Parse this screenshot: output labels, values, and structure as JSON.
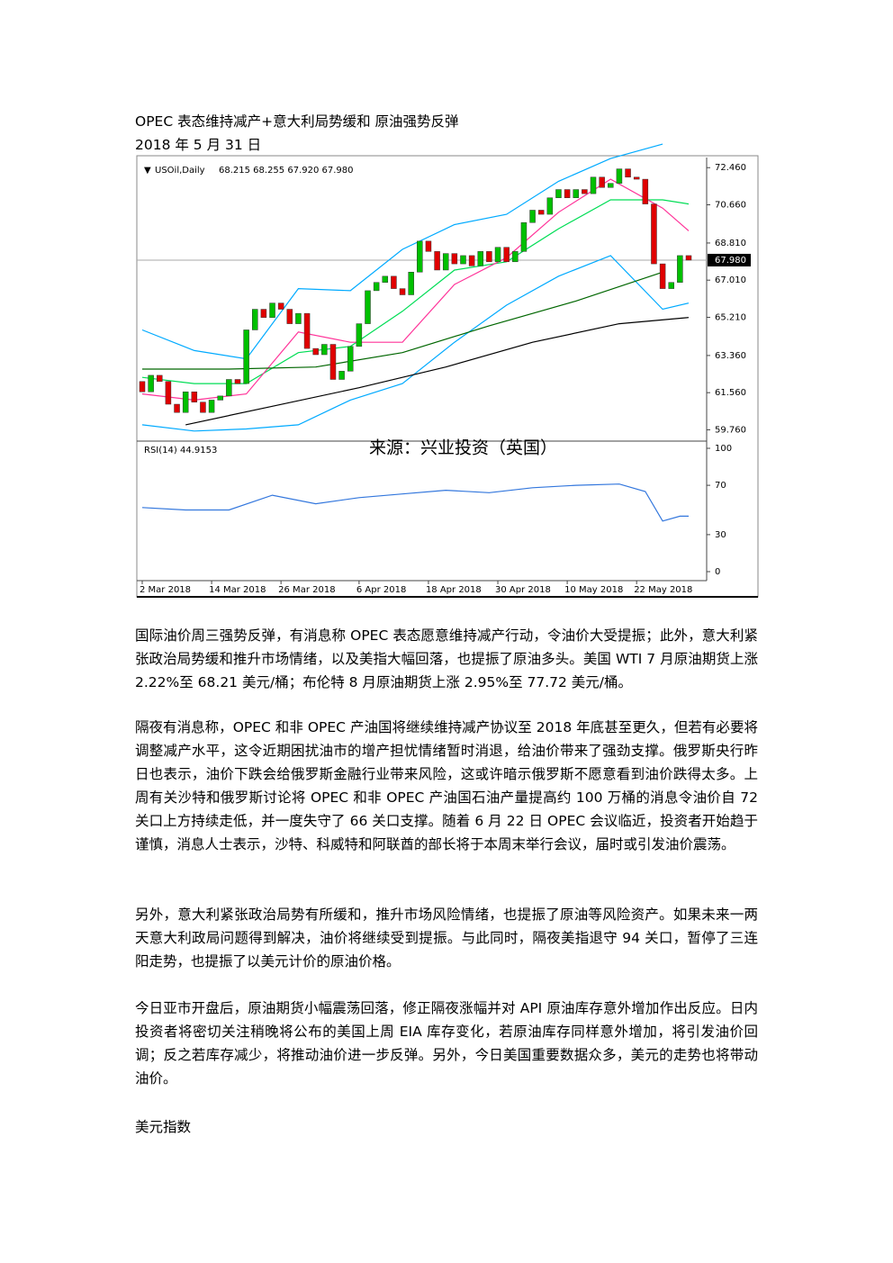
{
  "header": {
    "title": "OPEC 表态维持减产+意大利局势缓和  原油强势反弹",
    "date": "2018 年 5 月 31 日"
  },
  "chart": {
    "type": "candlestick",
    "symbol": "USOil,Daily",
    "quote": "68.215 68.255 67.920 67.980",
    "indicator_label": "RSI(14) 44.9153",
    "source": "来源：兴业投资（英国）",
    "categories": [
      "2 Mar 2018",
      null,
      null,
      null,
      null,
      null,
      null,
      null,
      "14 Mar 2018",
      null,
      null,
      null,
      null,
      null,
      null,
      null,
      "26 Mar 2018",
      null,
      null,
      null,
      null,
      null,
      null,
      null,
      null,
      "6 Apr 2018",
      null,
      null,
      null,
      null,
      null,
      null,
      null,
      "18 Apr 2018",
      null,
      null,
      null,
      null,
      null,
      null,
      null,
      "30 Apr 2018",
      null,
      null,
      null,
      null,
      null,
      null,
      null,
      "10 May 2018",
      null,
      null,
      null,
      null,
      null,
      null,
      null,
      "22 May 2018",
      null,
      null,
      null,
      null,
      null,
      null
    ],
    "open": [
      62.1,
      61.6,
      62.4,
      62.1,
      61.0,
      60.6,
      61.6,
      61.1,
      60.6,
      61.2,
      61.4,
      62.2,
      62.0,
      64.6,
      65.6,
      65.2,
      65.9,
      65.6,
      64.9,
      65.4,
      63.7,
      63.4,
      63.9,
      62.2,
      62.6,
      63.8,
      64.9,
      66.5,
      66.9,
      67.2,
      66.6,
      66.3,
      67.4,
      68.9,
      68.4,
      67.5,
      68.3,
      67.8,
      68.2,
      67.7,
      68.4,
      67.9,
      68.6,
      67.9,
      68.4,
      69.8,
      70.4,
      70.2,
      71.0,
      71.4,
      71.0,
      71.4,
      71.2,
      72.0,
      71.5,
      71.7,
      72.4,
      72.0,
      71.9,
      70.7,
      67.8,
      66.6,
      66.9,
      68.2
    ],
    "close": [
      61.6,
      62.4,
      62.1,
      61.0,
      60.6,
      61.6,
      61.1,
      60.6,
      61.2,
      61.4,
      62.2,
      62.0,
      64.6,
      65.6,
      65.2,
      65.9,
      65.6,
      64.9,
      65.4,
      63.7,
      63.4,
      63.9,
      62.2,
      62.6,
      63.8,
      64.9,
      66.5,
      66.9,
      67.2,
      66.6,
      66.3,
      67.4,
      68.9,
      68.4,
      67.5,
      68.3,
      67.8,
      68.2,
      67.7,
      68.4,
      67.9,
      68.6,
      67.9,
      68.4,
      69.8,
      70.4,
      70.2,
      71.0,
      71.4,
      71.0,
      71.4,
      71.2,
      72.0,
      71.5,
      71.7,
      72.4,
      72.0,
      71.9,
      70.7,
      67.8,
      66.6,
      66.9,
      68.2,
      67.98
    ],
    "up_color": "#00c000",
    "down_color": "#e00000",
    "last_price": {
      "value": 67.98,
      "label": "67.980"
    },
    "ylim": [
      59.3,
      72.95
    ],
    "yticks": [
      {
        "value": 72.46,
        "label": "72.460"
      },
      {
        "value": 70.66,
        "label": "70.660"
      },
      {
        "value": 68.81,
        "label": "68.810"
      },
      {
        "value": 67.01,
        "label": "67.010"
      },
      {
        "value": 65.21,
        "label": "65.210"
      },
      {
        "value": 63.36,
        "label": "63.360"
      },
      {
        "value": 61.56,
        "label": "61.560"
      },
      {
        "value": 59.76,
        "label": "59.760"
      }
    ],
    "lines": [
      {
        "color": "#00aaff",
        "x": [
          0,
          6,
          12,
          18,
          24,
          30,
          36,
          42,
          48,
          54,
          60
        ],
        "values": [
          64.6,
          63.6,
          63.2,
          66.6,
          66.5,
          68.5,
          69.7,
          70.2,
          71.8,
          72.9,
          73.6
        ]
      },
      {
        "color": "#00aaff",
        "x": [
          0,
          6,
          12,
          18,
          24,
          30,
          36,
          42,
          48,
          54,
          60,
          63
        ],
        "values": [
          60.0,
          59.7,
          59.8,
          60.0,
          61.2,
          62.0,
          64.0,
          65.8,
          67.2,
          68.2,
          65.6,
          65.9
        ]
      },
      {
        "color": "#00dd55",
        "x": [
          0,
          6,
          12,
          18,
          24,
          30,
          36,
          42,
          48,
          54,
          60,
          63
        ],
        "values": [
          62.3,
          62.0,
          62.0,
          63.5,
          63.8,
          65.5,
          67.5,
          67.9,
          69.5,
          70.9,
          70.9,
          70.7
        ]
      },
      {
        "color": "#ff3399",
        "x": [
          0,
          6,
          12,
          18,
          24,
          30,
          36,
          42,
          48,
          54,
          60,
          63
        ],
        "values": [
          61.5,
          61.2,
          61.5,
          64.5,
          64.0,
          64.0,
          66.8,
          68.1,
          70.3,
          71.9,
          70.5,
          69.4
        ]
      },
      {
        "color": "#006600",
        "x": [
          0,
          10,
          20,
          30,
          40,
          50,
          60
        ],
        "values": [
          62.7,
          62.7,
          62.8,
          63.5,
          64.8,
          66.0,
          67.4
        ]
      },
      {
        "color": "#000000",
        "x": [
          5,
          15,
          25,
          35,
          45,
          55,
          63
        ],
        "values": [
          60.0,
          60.9,
          61.8,
          62.8,
          64.0,
          64.9,
          65.2
        ]
      }
    ],
    "rsi": {
      "color": "#3377dd",
      "x": [
        0,
        5,
        10,
        15,
        20,
        25,
        30,
        35,
        40,
        45,
        50,
        55,
        58,
        60,
        62,
        63
      ],
      "values": [
        52,
        50,
        50,
        62,
        55,
        60,
        63,
        66,
        64,
        68,
        70,
        71,
        65,
        41,
        45,
        45
      ],
      "ylim": [
        0,
        100
      ],
      "yticks": [
        100,
        70,
        30,
        0
      ]
    }
  },
  "paragraphs": [
    "国际油价周三强势反弹，有消息称 OPEC 表态愿意维持减产行动，令油价大受提振；此外，意大利紧张政治局势缓和推升市场情绪，以及美指大幅回落，也提振了原油多头。美国 WTI 7 月原油期货上涨 2.22%至 68.21 美元/桶；布伦特 8 月原油期货上涨 2.95%至 77.72 美元/桶。",
    "隔夜有消息称，OPEC 和非 OPEC 产油国将继续维持减产协议至 2018 年底甚至更久，但若有必要将调整减产水平，这令近期困扰油市的增产担忧情绪暂时消退，给油价带来了强劲支撑。俄罗斯央行昨日也表示，油价下跌会给俄罗斯金融行业带来风险，这或许暗示俄罗斯不愿意看到油价跌得太多。上周有关沙特和俄罗斯讨论将 OPEC 和非 OPEC 产油国石油产量提高约 100 万桶的消息令油价自 72 关口上方持续走低，并一度失守了 66 关口支撑。随着 6 月 22 日 OPEC 会议临近，投资者开始趋于谨慎，消息人士表示，沙特、科威特和阿联酋的部长将于本周末举行会议，届时或引发油价震荡。",
    "另外，意大利紧张政治局势有所缓和，推升市场风险情绪，也提振了原油等风险资产。如果未来一两天意大利政局问题得到解决，油价将继续受到提振。与此同时，隔夜美指退守 94 关口，暂停了三连阳走势，也提振了以美元计价的原油价格。",
    "今日亚市开盘后，原油期货小幅震荡回落，修正隔夜涨幅并对 API 原油库存意外增加作出反应。日内投资者将密切关注稍晚将公布的美国上周 EIA 库存变化，若原油库存同样意外增加，将引发油价回调；反之若库存减少，将推动油价进一步反弹。另外，今日美国重要数据众多，美元的走势也将带动油价。"
  ],
  "next_section": "美元指数"
}
